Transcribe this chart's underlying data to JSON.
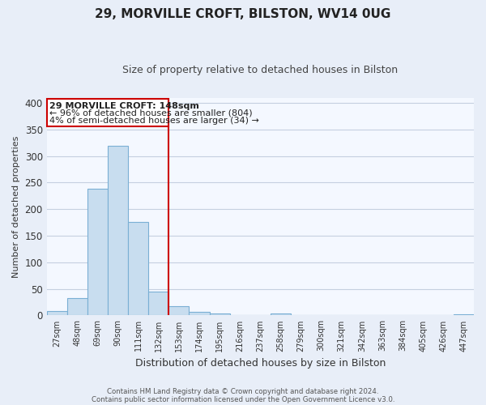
{
  "title": "29, MORVILLE CROFT, BILSTON, WV14 0UG",
  "subtitle": "Size of property relative to detached houses in Bilston",
  "xlabel": "Distribution of detached houses by size in Bilston",
  "ylabel": "Number of detached properties",
  "bar_labels": [
    "27sqm",
    "48sqm",
    "69sqm",
    "90sqm",
    "111sqm",
    "132sqm",
    "153sqm",
    "174sqm",
    "195sqm",
    "216sqm",
    "237sqm",
    "258sqm",
    "279sqm",
    "300sqm",
    "321sqm",
    "342sqm",
    "363sqm",
    "384sqm",
    "405sqm",
    "426sqm",
    "447sqm"
  ],
  "bar_values": [
    8,
    32,
    238,
    320,
    176,
    45,
    18,
    6,
    3,
    0,
    0,
    3,
    0,
    1,
    0,
    0,
    0,
    0,
    0,
    0,
    2
  ],
  "bar_color": "#c8ddef",
  "bar_edge_color": "#7aafd4",
  "vline_color": "#cc0000",
  "ylim": [
    0,
    410
  ],
  "yticks": [
    0,
    50,
    100,
    150,
    200,
    250,
    300,
    350,
    400
  ],
  "annotation_title": "29 MORVILLE CROFT: 148sqm",
  "annotation_line1": "← 96% of detached houses are smaller (804)",
  "annotation_line2": "4% of semi-detached houses are larger (34) →",
  "annotation_box_color": "#ffffff",
  "annotation_box_edge": "#cc0000",
  "footer1": "Contains HM Land Registry data © Crown copyright and database right 2024.",
  "footer2": "Contains public sector information licensed under the Open Government Licence v3.0.",
  "bg_color": "#e8eef8",
  "plot_bg_color": "#f4f8ff",
  "grid_color": "#c5d0e0"
}
